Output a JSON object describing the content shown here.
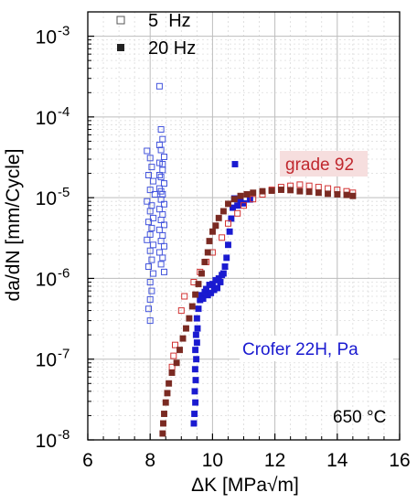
{
  "chart_data": {
    "type": "scatter",
    "xlabel": "ΔK [MPa√m]",
    "ylabel": "da/dN [mm/Cycle]",
    "x_scale": "linear",
    "y_scale": "log",
    "xlim": [
      6,
      16
    ],
    "ylim": [
      1e-08,
      0.002
    ],
    "grid": true,
    "x_ticks": [
      "6",
      "8",
      "10",
      "12",
      "14",
      "16"
    ],
    "y_ticks": [
      {
        "base": "10",
        "exp": "-8"
      },
      {
        "base": "10",
        "exp": "-7"
      },
      {
        "base": "10",
        "exp": "-6"
      },
      {
        "base": "10",
        "exp": "-5"
      },
      {
        "base": "10",
        "exp": "-4"
      },
      {
        "base": "10",
        "exp": "-3"
      }
    ],
    "legend": {
      "position": "top-left",
      "entries": [
        {
          "label": "5  Hz",
          "marker": "open-square"
        },
        {
          "label": "20 Hz",
          "marker": "filled-square"
        }
      ]
    },
    "annotations": [
      {
        "text": "grade 92",
        "color": "#c0282e"
      },
      {
        "text": "Crofer 22H, Pa",
        "color": "#1a1ad0"
      },
      {
        "text": "650 °C",
        "color": "#000000"
      }
    ],
    "colors": {
      "crofer": "#1a1ad0",
      "grade92_open": "#d23232",
      "grade92_filled": "#7a2a22",
      "label_bg": "#f6dede"
    },
    "series": [
      {
        "material": "Crofer 22H",
        "frequency": "5 Hz",
        "marker": "open-square",
        "color": "#4455dd",
        "points": [
          [
            7.9,
            3.8e-05
          ],
          [
            8.0,
            3.1e-05
          ],
          [
            8.05,
            2.4e-05
          ],
          [
            7.95,
            1.9e-05
          ],
          [
            8.1,
            1.6e-05
          ],
          [
            8.0,
            1.25e-05
          ],
          [
            8.15,
            1.1e-05
          ],
          [
            7.9,
            9e-06
          ],
          [
            8.05,
            8e-06
          ],
          [
            8.0,
            6.8e-06
          ],
          [
            8.1,
            5.6e-06
          ],
          [
            7.95,
            5e-06
          ],
          [
            8.05,
            4.2e-06
          ],
          [
            8.0,
            3.5e-06
          ],
          [
            7.9,
            3e-06
          ],
          [
            8.1,
            2.6e-06
          ],
          [
            8.0,
            2.2e-06
          ],
          [
            8.05,
            1.7e-06
          ],
          [
            7.95,
            1.4e-06
          ],
          [
            8.1,
            1.15e-06
          ],
          [
            8.0,
            9e-07
          ],
          [
            8.05,
            7e-07
          ],
          [
            8.0,
            5.5e-07
          ],
          [
            7.95,
            4.2e-07
          ],
          [
            8.0,
            3e-07
          ],
          [
            8.3,
            0.00024
          ],
          [
            8.35,
            7e-05
          ],
          [
            8.4,
            5.3e-05
          ],
          [
            8.3,
            4.5e-05
          ],
          [
            8.35,
            3.9e-05
          ],
          [
            8.45,
            3.2e-05
          ],
          [
            8.3,
            2.7e-05
          ],
          [
            8.4,
            2.2e-05
          ],
          [
            8.35,
            1.8e-05
          ],
          [
            8.45,
            1.5e-05
          ],
          [
            8.3,
            1.3e-05
          ],
          [
            8.4,
            1.1e-05
          ],
          [
            8.35,
            9.5e-06
          ],
          [
            8.45,
            8.3e-06
          ],
          [
            8.3,
            7.2e-06
          ],
          [
            8.4,
            6.2e-06
          ],
          [
            8.35,
            5.3e-06
          ],
          [
            8.45,
            4.6e-06
          ],
          [
            8.3,
            4e-06
          ],
          [
            8.4,
            3.4e-06
          ],
          [
            8.35,
            2.9e-06
          ],
          [
            8.45,
            2.5e-06
          ],
          [
            8.3,
            2.1e-06
          ],
          [
            8.4,
            1.8e-06
          ],
          [
            8.35,
            1.5e-06
          ],
          [
            8.45,
            1.2e-06
          ],
          [
            8.3,
            1.9e-05
          ],
          [
            8.4,
            2.6e-05
          ],
          [
            8.35,
            1.2e-05
          ]
        ]
      },
      {
        "material": "Crofer 22H",
        "frequency": "20 Hz",
        "marker": "filled-square",
        "color": "#1a1ad0",
        "points": [
          [
            9.4,
            1.6e-08
          ],
          [
            9.42,
            2.1e-08
          ],
          [
            9.45,
            2.9e-08
          ],
          [
            9.43,
            4e-08
          ],
          [
            9.46,
            5.5e-08
          ],
          [
            9.44,
            7.5e-08
          ],
          [
            9.48,
            1e-07
          ],
          [
            9.45,
            1.3e-07
          ],
          [
            9.5,
            1.6e-07
          ],
          [
            9.47,
            2e-07
          ],
          [
            9.52,
            2.4e-07
          ],
          [
            9.5,
            3.2e-07
          ],
          [
            9.55,
            4.2e-07
          ],
          [
            9.6,
            5.4e-07
          ],
          [
            9.65,
            6.2e-07
          ],
          [
            9.7,
            5.6e-07
          ],
          [
            9.75,
            6.8e-07
          ],
          [
            9.8,
            7.4e-07
          ],
          [
            9.85,
            6.2e-07
          ],
          [
            9.9,
            8.3e-07
          ],
          [
            9.95,
            6.6e-07
          ],
          [
            10.0,
            8.5e-07
          ],
          [
            10.05,
            7.2e-07
          ],
          [
            10.1,
            9.5e-07
          ],
          [
            10.15,
            7.6e-07
          ],
          [
            10.2,
            1e-06
          ],
          [
            10.25,
            9e-07
          ],
          [
            10.3,
            1.1e-06
          ],
          [
            10.35,
            1.15e-06
          ],
          [
            10.4,
            1.4e-06
          ],
          [
            10.45,
            1.8e-06
          ],
          [
            10.5,
            2.6e-06
          ],
          [
            10.55,
            3.8e-06
          ],
          [
            10.6,
            5.5e-06
          ],
          [
            10.65,
            7.5e-06
          ],
          [
            10.7,
            9.8e-06
          ],
          [
            10.72,
            2.6e-05
          ],
          [
            10.8,
            8e-06
          ],
          [
            10.9,
            9e-06
          ],
          [
            11.0,
            8.5e-06
          ],
          [
            11.2,
            9.5e-06
          ]
        ]
      },
      {
        "material": "grade 92",
        "frequency": "5 Hz",
        "marker": "open-square",
        "color": "#d23232",
        "points": [
          [
            8.7,
            8e-08
          ],
          [
            8.75,
            1.1e-07
          ],
          [
            8.8,
            1.5e-07
          ],
          [
            9.0,
            4e-07
          ],
          [
            9.1,
            6e-07
          ],
          [
            9.4,
            9e-07
          ],
          [
            9.6,
            1.2e-06
          ],
          [
            9.8,
            1.6e-06
          ],
          [
            10.0,
            2.1e-06
          ],
          [
            10.3,
            3.2e-06
          ],
          [
            10.5,
            4.8e-06
          ],
          [
            10.8,
            6.4e-06
          ],
          [
            11.0,
            8e-06
          ],
          [
            11.3,
            9.6e-06
          ],
          [
            11.6,
            1.1e-05
          ],
          [
            11.9,
            1.25e-05
          ],
          [
            12.2,
            1.35e-05
          ],
          [
            12.5,
            1.4e-05
          ],
          [
            12.8,
            1.45e-05
          ],
          [
            13.1,
            1.4e-05
          ],
          [
            13.4,
            1.35e-05
          ],
          [
            13.7,
            1.3e-05
          ],
          [
            14.0,
            1.25e-05
          ],
          [
            14.3,
            1.2e-05
          ],
          [
            14.5,
            1.15e-05
          ]
        ]
      },
      {
        "material": "grade 92",
        "frequency": "20 Hz",
        "marker": "filled-square",
        "color": "#7a2a22",
        "points": [
          [
            8.4,
            1.2e-08
          ],
          [
            8.42,
            1.6e-08
          ],
          [
            8.45,
            2.1e-08
          ],
          [
            8.5,
            2.9e-08
          ],
          [
            8.55,
            3.8e-08
          ],
          [
            8.6,
            5e-08
          ],
          [
            8.7,
            6.8e-08
          ],
          [
            8.85,
            9e-08
          ],
          [
            8.95,
            1.3e-07
          ],
          [
            9.05,
            1.8e-07
          ],
          [
            9.15,
            2.4e-07
          ],
          [
            9.25,
            3.2e-07
          ],
          [
            9.35,
            4.5e-07
          ],
          [
            9.45,
            6.3e-07
          ],
          [
            9.55,
            8.5e-07
          ],
          [
            9.65,
            1.15e-06
          ],
          [
            9.75,
            1.6e-06
          ],
          [
            9.85,
            2.1e-06
          ],
          [
            9.9,
            2.9e-06
          ],
          [
            10.0,
            3.8e-06
          ],
          [
            10.1,
            4.5e-06
          ],
          [
            10.2,
            5.6e-06
          ],
          [
            10.35,
            6.8e-06
          ],
          [
            10.5,
            8.4e-06
          ],
          [
            10.7,
            9.6e-06
          ],
          [
            10.9,
            1.05e-05
          ],
          [
            11.1,
            1.1e-05
          ],
          [
            11.3,
            1.15e-05
          ],
          [
            11.6,
            1.2e-05
          ],
          [
            11.9,
            1.22e-05
          ],
          [
            12.2,
            1.25e-05
          ],
          [
            12.5,
            1.24e-05
          ],
          [
            12.8,
            1.2e-05
          ],
          [
            13.1,
            1.18e-05
          ],
          [
            13.4,
            1.15e-05
          ],
          [
            13.7,
            1.12e-05
          ],
          [
            14.0,
            1.1e-05
          ],
          [
            14.3,
            1.08e-05
          ],
          [
            14.5,
            1.05e-05
          ]
        ]
      }
    ]
  }
}
